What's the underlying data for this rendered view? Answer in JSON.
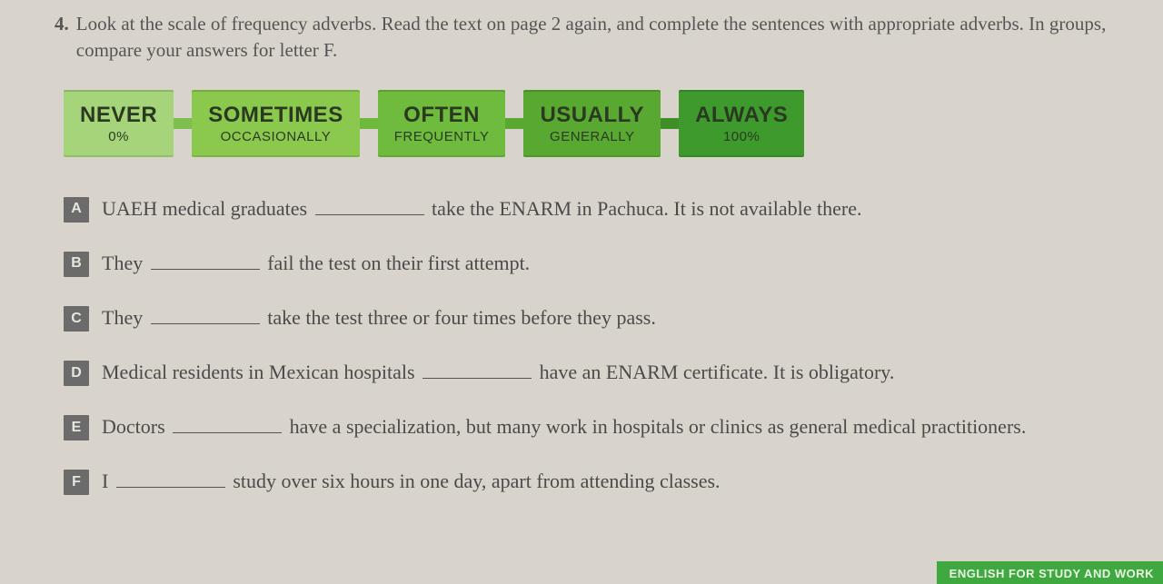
{
  "exercise": {
    "number": "4.",
    "instruction": "Look at the scale of frequency adverbs. Read the text on page 2 again, and complete the sentences with appropriate adverbs. In groups, compare your answers for letter F."
  },
  "scale": [
    {
      "main": "NEVER",
      "sub": "0%",
      "bg": "#a6d47a",
      "connector": "#7fbf4f"
    },
    {
      "main": "SOMETIMES",
      "sub": "OCCASIONALLY",
      "bg": "#8bc94e",
      "connector": "#6eb83e"
    },
    {
      "main": "OFTEN",
      "sub": "FREQUENTLY",
      "bg": "#6fbb3e",
      "connector": "#58a832"
    },
    {
      "main": "USUALLY",
      "sub": "GENERALLY",
      "bg": "#58a832",
      "connector": "#3f8f26"
    },
    {
      "main": "ALWAYS",
      "sub": "100%",
      "bg": "#3f9a2e",
      "connector": ""
    }
  ],
  "items": [
    {
      "letter": "A",
      "pre": "UAEH medical graduates ",
      "post": " take the ENARM in Pachuca. It is not available there."
    },
    {
      "letter": "B",
      "pre": "They ",
      "post": " fail the test on their first attempt."
    },
    {
      "letter": "C",
      "pre": "They ",
      "post": " take the test three or four times before they pass."
    },
    {
      "letter": "D",
      "pre": "Medical residents in Mexican hospitals ",
      "post": " have an ENARM certificate. It is obligatory."
    },
    {
      "letter": "E",
      "pre": "Doctors ",
      "post": " have a specialization, but many work in hospitals or clinics as general medical practitioners."
    },
    {
      "letter": "F",
      "pre": "I ",
      "post": " study over six hours in one day, apart from attending classes."
    }
  ],
  "footer": "ENGLISH FOR STUDY AND WORK"
}
